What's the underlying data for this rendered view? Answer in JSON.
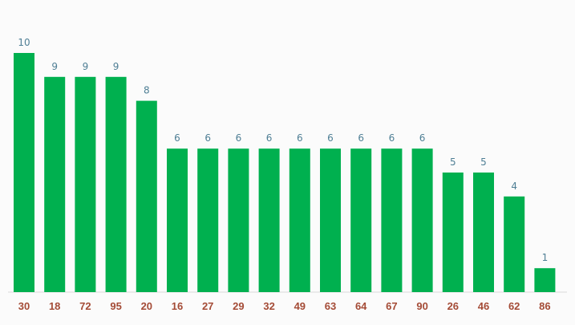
{
  "chart_data": {
    "type": "bar",
    "categories": [
      "30",
      "18",
      "72",
      "95",
      "20",
      "16",
      "27",
      "29",
      "32",
      "49",
      "63",
      "64",
      "67",
      "90",
      "26",
      "46",
      "62",
      "86"
    ],
    "values": [
      10,
      9,
      9,
      9,
      8,
      6,
      6,
      6,
      6,
      6,
      6,
      6,
      6,
      6,
      5,
      5,
      4,
      1
    ],
    "title": "",
    "xlabel": "",
    "ylabel": "",
    "ylim": [
      0,
      10
    ],
    "grid": false,
    "data_labels": true,
    "colors": {
      "bar": "#00b04f",
      "value_label": "#4f7f95",
      "tick_label": "#a44b36",
      "background": "#fbfbfb"
    }
  }
}
